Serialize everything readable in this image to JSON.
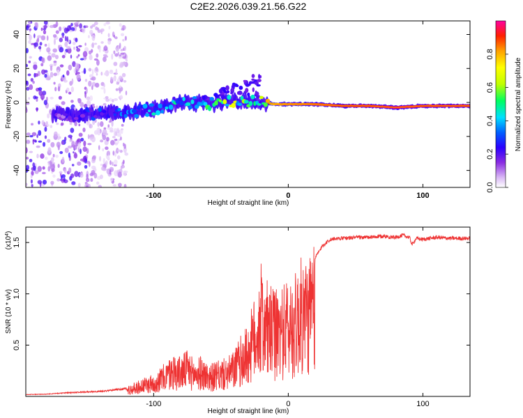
{
  "figure_title": "C2E2.2026.039.21.56.G22",
  "chart_data": [
    {
      "type": "heatmap",
      "title": "C2E2.2026.039.21.56.G22",
      "xlabel": "Height of straight line (km)",
      "ylabel": "Frequency (Hz)",
      "xlim": [
        -195,
        135
      ],
      "ylim": [
        -50,
        48
      ],
      "xticks": [
        -100,
        0,
        100
      ],
      "xtick_labels": [
        "-100",
        "0",
        "100"
      ],
      "yticks": [
        -40,
        -20,
        0,
        20,
        40
      ],
      "ytick_labels": [
        "-40",
        "-20",
        "0",
        "20",
        "40"
      ],
      "colorbar": {
        "label": "Normalized spectral amplitude",
        "range": [
          0,
          1
        ],
        "ticks": [
          0.0,
          0.2,
          0.4,
          0.6,
          0.8
        ],
        "tick_labels": [
          "0.0",
          "0.2",
          "0.4",
          "0.6",
          "0.8"
        ],
        "colormap": [
          "#ffffff",
          "#d9b8f5",
          "#8a2be2",
          "#2a00ff",
          "#0060ff",
          "#00e0ff",
          "#00ff60",
          "#c0ff00",
          "#ffff00",
          "#ffa000",
          "#ff2000",
          "#ff00a0"
        ]
      },
      "ridge_points": [
        {
          "x": -170,
          "freq": -7,
          "amp": 0.15
        },
        {
          "x": -160,
          "freq": -8,
          "amp": 0.2
        },
        {
          "x": -150,
          "freq": -7,
          "amp": 0.25
        },
        {
          "x": -140,
          "freq": -7,
          "amp": 0.28
        },
        {
          "x": -130,
          "freq": -6,
          "amp": 0.3
        },
        {
          "x": -120,
          "freq": -6,
          "amp": 0.32
        },
        {
          "x": -110,
          "freq": -5,
          "amp": 0.35
        },
        {
          "x": -100,
          "freq": -4,
          "amp": 0.38
        },
        {
          "x": -90,
          "freq": -2,
          "amp": 0.4
        },
        {
          "x": -80,
          "freq": 0,
          "amp": 0.42
        },
        {
          "x": -70,
          "freq": 0,
          "amp": 0.45
        },
        {
          "x": -60,
          "freq": -1,
          "amp": 0.5
        },
        {
          "x": -50,
          "freq": 0,
          "amp": 0.52
        },
        {
          "x": -40,
          "freq": 1,
          "amp": 0.55
        },
        {
          "x": -30,
          "freq": 1,
          "amp": 0.55
        },
        {
          "x": -20,
          "freq": 0,
          "amp": 0.6
        },
        {
          "x": -10,
          "freq": -1,
          "amp": 0.75
        },
        {
          "x": 0,
          "freq": -1,
          "amp": 0.8
        },
        {
          "x": 10,
          "freq": -1,
          "amp": 0.82
        },
        {
          "x": 20,
          "freq": -1,
          "amp": 0.85
        },
        {
          "x": 40,
          "freq": -2,
          "amp": 0.9
        },
        {
          "x": 60,
          "freq": -2,
          "amp": 0.92
        },
        {
          "x": 80,
          "freq": -3,
          "amp": 0.95
        },
        {
          "x": 100,
          "freq": -2,
          "amp": 0.92
        },
        {
          "x": 120,
          "freq": -2,
          "amp": 0.93
        },
        {
          "x": 135,
          "freq": -2,
          "amp": 0.92
        }
      ]
    },
    {
      "type": "line",
      "xlabel": "Height of straight line (km)",
      "ylabel": "SNR (10 * v/v)",
      "y_multiplier_label": "(x10",
      "y_multiplier_exp": "4",
      "xlim": [
        -195,
        135
      ],
      "ylim": [
        0,
        16500
      ],
      "xticks": [
        -100,
        0,
        100
      ],
      "xtick_labels": [
        "-100",
        "0",
        "100"
      ],
      "yticks": [
        5000,
        10000,
        15000
      ],
      "ytick_labels": [
        "0.5",
        "1.0",
        "1.5"
      ],
      "line_color": "#ee3333",
      "series": [
        {
          "name": "SNR",
          "x": [
            -195,
            -180,
            -165,
            -150,
            -135,
            -120,
            -110,
            -100,
            -95,
            -90,
            -85,
            -80,
            -75,
            -70,
            -65,
            -60,
            -55,
            -50,
            -45,
            -40,
            -35,
            -30,
            -25,
            -20,
            -15,
            -10,
            -5,
            0,
            5,
            10,
            15,
            20,
            25,
            30,
            35,
            40,
            50,
            60,
            70,
            80,
            85,
            90,
            92,
            95,
            100,
            110,
            120,
            135
          ],
          "y": [
            200,
            250,
            400,
            500,
            600,
            900,
            1500,
            2000,
            2600,
            3200,
            3800,
            3600,
            4200,
            3300,
            3600,
            3000,
            3000,
            3300,
            3500,
            4200,
            5500,
            6500,
            9000,
            12000,
            10000,
            9500,
            9800,
            10500,
            11000,
            12500,
            12500,
            13500,
            14600,
            15200,
            15400,
            15400,
            15500,
            15500,
            15600,
            15500,
            15700,
            15500,
            14800,
            15400,
            15300,
            15500,
            15400,
            15400
          ]
        }
      ]
    }
  ]
}
